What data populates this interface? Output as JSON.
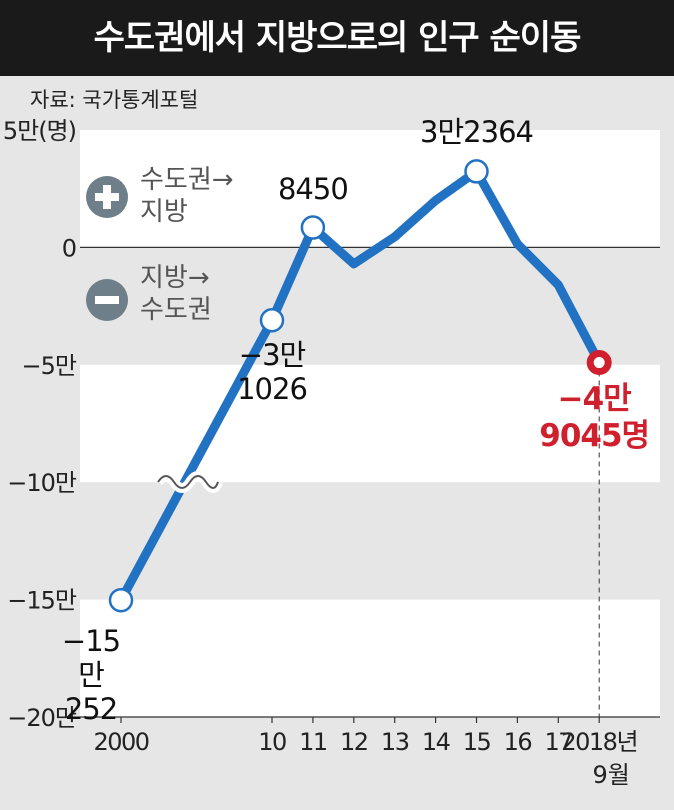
{
  "chart_data": {
    "type": "line",
    "title": "수도권에서 지방으로의 인구 순이동",
    "source": "자료: 국가통계포털",
    "annotations": [
      "수도권→\n지방",
      "지방→\n수도권"
    ],
    "categories": [
      "2000",
      "10",
      "11",
      "12",
      "13",
      "14",
      "15",
      "16",
      "17",
      "2018년"
    ],
    "x_sublabel": "9월",
    "series": [
      {
        "name": "인구 순이동",
        "color": "#2272c3",
        "highlight_color": "#d0202e",
        "values": [
          -150252,
          -31026,
          8450,
          -7000,
          4500,
          20000,
          32364,
          1500,
          -16000,
          -49045
        ],
        "value_labels": [
          "−15만\n252",
          "−3만\n1026",
          "8450",
          null,
          null,
          null,
          "3만2364",
          null,
          null,
          "−4만\n9045명"
        ]
      }
    ],
    "ylim": [
      -200000,
      50000
    ],
    "yticks": [
      {
        "value": -200000,
        "label": "−20만"
      },
      {
        "value": -150000,
        "label": "−15만"
      },
      {
        "value": -100000,
        "label": "−10만"
      },
      {
        "value": -50000,
        "label": "−5만"
      },
      0,
      {
        "value": 50000,
        "label": "5만(명)"
      }
    ]
  }
}
